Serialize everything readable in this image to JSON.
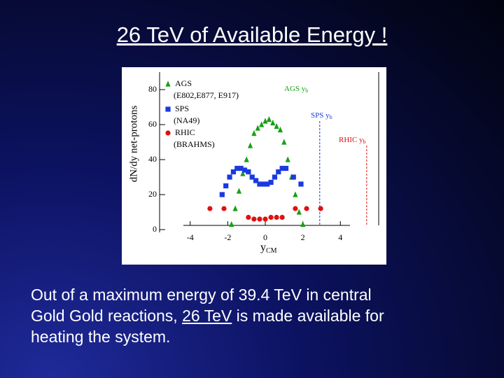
{
  "slide": {
    "title": "26 TeV of Available Energy !",
    "body": [
      [
        "Out of a maximum energy of 39.4 TeV in central"
      ],
      [
        "Gold Gold reactions,",
        "26 TeV",
        "is made available for"
      ],
      [
        "heating the system."
      ]
    ]
  },
  "chart_data": {
    "type": "scatter",
    "ylabel": "dN/dy net-protons",
    "xlabel": {
      "text": "y",
      "sub": "CM"
    },
    "xlim": [
      -5.63,
      6.04
    ],
    "ylim": [
      0,
      90
    ],
    "xticks": [
      -4,
      -2,
      0,
      2,
      4
    ],
    "yticks": [
      0,
      20,
      40,
      60,
      80
    ],
    "series": [
      {
        "name": "AGS",
        "experiment": "(E802,E877, E917)",
        "color": "#16a016",
        "marker": "triangle",
        "x": [
          -1.8,
          -1.6,
          -1.4,
          -1.2,
          -1.0,
          -0.8,
          -0.6,
          -0.4,
          -0.2,
          0.0,
          0.2,
          0.4,
          0.6,
          0.8,
          1.0,
          1.2,
          1.4,
          1.6,
          1.8,
          2.0
        ],
        "values": [
          3,
          12,
          22,
          32,
          40,
          48,
          55,
          58,
          60,
          62,
          63,
          61,
          59,
          57,
          50,
          40,
          30,
          20,
          10,
          3
        ]
      },
      {
        "name": "SPS",
        "experiment": "(NA49)",
        "color": "#1a3adf",
        "marker": "square",
        "x": [
          -2.3,
          -2.1,
          -1.9,
          -1.7,
          -1.5,
          -1.3,
          -1.1,
          -0.9,
          -0.7,
          -0.5,
          -0.3,
          -0.1,
          0.1,
          0.3,
          0.5,
          0.7,
          0.9,
          1.1,
          1.5,
          1.9
        ],
        "values": [
          20,
          25,
          30,
          33,
          35,
          35,
          34,
          33,
          30,
          28,
          26,
          26,
          26,
          27,
          30,
          33,
          35,
          35,
          30,
          26
        ]
      },
      {
        "name": "RHIC",
        "experiment": "(BRAHMS)",
        "color": "#e01010",
        "marker": "circle",
        "x": [
          -2.95,
          -2.2,
          -0.9,
          -0.6,
          -0.3,
          0.0,
          0.3,
          0.6,
          0.9,
          1.6,
          2.2,
          2.95
        ],
        "values": [
          12,
          12,
          7,
          6,
          6,
          6,
          7,
          7,
          7,
          12,
          12,
          12
        ]
      }
    ],
    "annotations": [
      {
        "text": "AGS y",
        "sub": "b",
        "color": "#16a016"
      },
      {
        "text": "SPS y",
        "sub": "b",
        "color": "#1a3adf",
        "x": 2.9
      },
      {
        "text": "RHIC y",
        "sub": "b",
        "color": "#e01010",
        "x": 5.4
      }
    ]
  }
}
